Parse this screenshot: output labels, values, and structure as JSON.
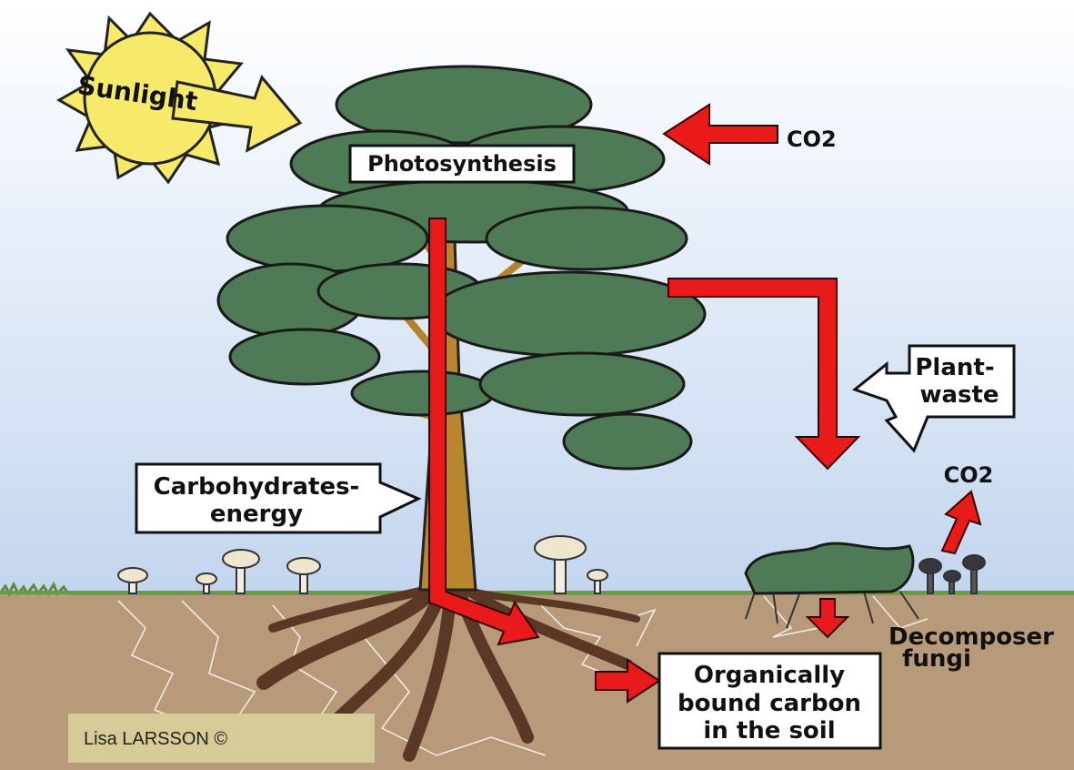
{
  "labels": {
    "sunlight": "Sunlight",
    "co2_top": "CO2",
    "photosynthesis": "Photosynthesis",
    "plant_waste": [
      "Plant-",
      "waste"
    ],
    "carbohydrates": [
      "Carbohydrates-",
      "energy"
    ],
    "co2_right": "CO2",
    "decomposer": [
      "Decomposer",
      "fungi"
    ],
    "organic_carbon": [
      "Organically",
      "bound carbon",
      "in the soil"
    ]
  },
  "credit": "Lisa LARSSON ©"
}
